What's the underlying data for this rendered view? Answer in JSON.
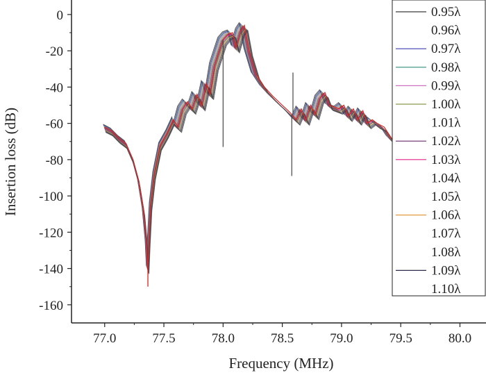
{
  "chart_data": {
    "type": "line",
    "title": "",
    "xlabel": "Frequency (MHz)",
    "ylabel": "Insertion loss (dB)",
    "xlim": [
      76.72,
      80.22
    ],
    "ylim": [
      -170,
      8
    ],
    "x_ticks": [
      {
        "value": 77.0,
        "label": "77.0"
      },
      {
        "value": 77.5,
        "label": "77.5"
      },
      {
        "value": 78.0,
        "label": "78.0"
      },
      {
        "value": 78.5,
        "label": "78.5"
      },
      {
        "value": 79.0,
        "label": "79.0"
      },
      {
        "value": 79.5,
        "label": "79.5"
      },
      {
        "value": 80.0,
        "label": "80.0"
      }
    ],
    "y_ticks": [
      {
        "value": 0,
        "label": "0"
      },
      {
        "value": -20,
        "label": "-20"
      },
      {
        "value": -40,
        "label": "-40"
      },
      {
        "value": -60,
        "label": "-60"
      },
      {
        "value": -80,
        "label": "-80"
      },
      {
        "value": -100,
        "label": "-100"
      },
      {
        "value": -120,
        "label": "-120"
      },
      {
        "value": -140,
        "label": "-140"
      },
      {
        "value": -160,
        "label": "-160"
      }
    ],
    "grid": false,
    "legend_position": "top-right",
    "x_range_data": [
      77.0,
      79.48
    ],
    "base_curve": [
      [
        77.0,
        -62
      ],
      [
        77.06,
        -64
      ],
      [
        77.12,
        -68
      ],
      [
        77.18,
        -71
      ],
      [
        77.24,
        -80
      ],
      [
        77.29,
        -92
      ],
      [
        77.33,
        -108
      ],
      [
        77.355,
        -126
      ],
      [
        77.365,
        -140
      ],
      [
        77.375,
        -124
      ],
      [
        77.39,
        -105
      ],
      [
        77.42,
        -88
      ],
      [
        77.47,
        -72
      ],
      [
        77.53,
        -65
      ],
      [
        77.58,
        -58
      ],
      [
        77.62,
        -62
      ],
      [
        77.66,
        -52
      ],
      [
        77.7,
        -48
      ],
      [
        77.74,
        -52
      ],
      [
        77.78,
        -44
      ],
      [
        77.82,
        -50
      ],
      [
        77.86,
        -38
      ],
      [
        77.89,
        -44
      ],
      [
        77.93,
        -28
      ],
      [
        77.97,
        -20
      ],
      [
        78.0,
        -14
      ],
      [
        78.04,
        -11
      ],
      [
        78.08,
        -10
      ],
      [
        78.11,
        -18
      ],
      [
        78.15,
        -9
      ],
      [
        78.18,
        -6
      ],
      [
        78.22,
        -20
      ],
      [
        78.28,
        -33
      ],
      [
        78.35,
        -40
      ],
      [
        78.42,
        -45
      ],
      [
        78.5,
        -50
      ],
      [
        78.55,
        -53
      ],
      [
        78.58,
        -55
      ],
      [
        78.62,
        -58
      ],
      [
        78.66,
        -52
      ],
      [
        78.7,
        -58
      ],
      [
        78.74,
        -50
      ],
      [
        78.78,
        -55
      ],
      [
        78.82,
        -46
      ],
      [
        78.86,
        -43
      ],
      [
        78.9,
        -50
      ],
      [
        78.94,
        -51
      ],
      [
        78.98,
        -52
      ],
      [
        79.02,
        -50
      ],
      [
        79.06,
        -56
      ],
      [
        79.1,
        -52
      ],
      [
        79.14,
        -58
      ],
      [
        79.18,
        -53
      ],
      [
        79.22,
        -60
      ],
      [
        79.26,
        -58
      ],
      [
        79.3,
        -60
      ],
      [
        79.36,
        -62
      ],
      [
        79.42,
        -68
      ],
      [
        79.48,
        -72
      ]
    ],
    "spikes": [
      {
        "x": 78.0,
        "y": -73
      },
      {
        "x": 78.58,
        "y": -89
      },
      {
        "x": 78.59,
        "y": -32
      }
    ],
    "deep_dip": {
      "x": 77.365,
      "y": -150
    },
    "series": [
      {
        "name": "0.95λ",
        "color": "#3a3a3a",
        "shift": -0.045,
        "offset": 1.5
      },
      {
        "name": "0.96λ",
        "color": "#ffffff",
        "shift": -0.04,
        "offset": 1.2
      },
      {
        "name": "0.97λ",
        "color": "#3b3bb0",
        "shift": -0.035,
        "offset": 0.9
      },
      {
        "name": "0.98λ",
        "color": "#2f8f7a",
        "shift": -0.03,
        "offset": 0.6
      },
      {
        "name": "0.99λ",
        "color": "#d070c0",
        "shift": -0.025,
        "offset": 0.3
      },
      {
        "name": "1.00λ",
        "color": "#8a9a4a",
        "shift": -0.02,
        "offset": 0.0
      },
      {
        "name": "1.01λ",
        "color": "#ffffff",
        "shift": -0.015,
        "offset": -0.3
      },
      {
        "name": "1.02λ",
        "color": "#6a2a6a",
        "shift": -0.01,
        "offset": -0.6
      },
      {
        "name": "1.03λ",
        "color": "#e0208a",
        "shift": -0.005,
        "offset": -0.9
      },
      {
        "name": "1.04λ",
        "color": "#ffffff",
        "shift": 0.0,
        "offset": -1.2
      },
      {
        "name": "1.05λ",
        "color": "#ffffff",
        "shift": 0.005,
        "offset": -1.5
      },
      {
        "name": "1.06λ",
        "color": "#e09a40",
        "shift": 0.01,
        "offset": -1.8
      },
      {
        "name": "1.07λ",
        "color": "#ffffff",
        "shift": 0.015,
        "offset": -2.1
      },
      {
        "name": "1.08λ",
        "color": "#ffffff",
        "shift": 0.02,
        "offset": -2.4
      },
      {
        "name": "1.09λ",
        "color": "#2a2a4a",
        "shift": 0.025,
        "offset": -2.7
      },
      {
        "name": "1.10λ",
        "color": "#ffffff",
        "shift": 0.03,
        "offset": -3.0
      }
    ],
    "highlight_series": {
      "color": "#e02020",
      "shift": 0.0,
      "offset": 0.0
    }
  }
}
